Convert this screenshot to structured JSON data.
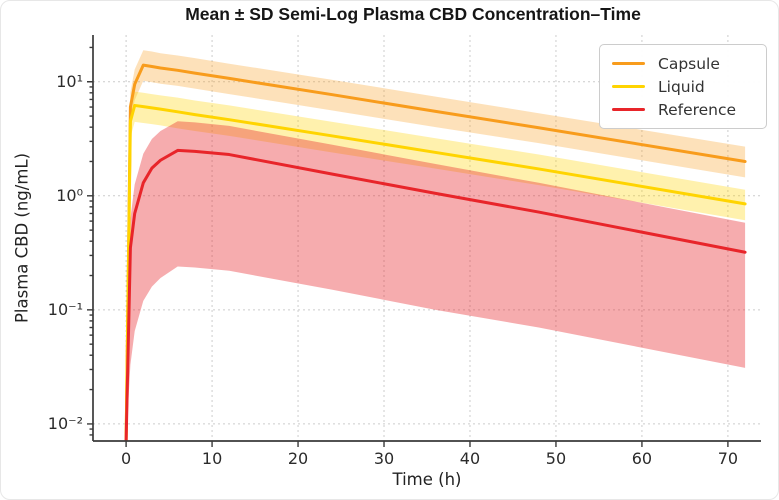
{
  "chart_data": {
    "type": "line",
    "title": "Mean ± SD Semi-Log Plasma CBD Concentration–Time",
    "xlabel": "Time (h)",
    "ylabel": "Plasma CBD (ng/mL)",
    "x_scale": "linear",
    "y_scale": "log",
    "xlim": [
      -3.85,
      73.85
    ],
    "ylim_log10": [
      -2.15,
      1.41
    ],
    "x_ticks": [
      0,
      10,
      20,
      30,
      40,
      50,
      60,
      70
    ],
    "y_ticks": [
      {
        "value": 10,
        "label": "10¹"
      },
      {
        "value": 1,
        "label": "10⁰"
      },
      {
        "value": 0.1,
        "label": "10⁻¹"
      },
      {
        "value": 0.01,
        "label": "10⁻²"
      }
    ],
    "grid": {
      "show": true,
      "style": "dashed",
      "color": "#cccccc"
    },
    "legend": {
      "position": "upper-right",
      "border_color": "#cccccc",
      "background": "#ffffff"
    },
    "x": [
      0,
      0.5,
      1,
      2,
      3,
      4,
      6,
      8,
      12,
      24,
      36,
      48,
      72
    ],
    "series": [
      {
        "name": "Capsule",
        "color": "#F89C1C",
        "band_opacity": 0.3,
        "mean": [
          0.007,
          6.0,
          9.5,
          14.0,
          13.6,
          13.2,
          12.6,
          11.9,
          10.7,
          7.7,
          5.5,
          3.95,
          2.0
        ],
        "upper": [
          0.007,
          8.1,
          12.8,
          18.9,
          18.4,
          17.8,
          17.0,
          16.1,
          14.4,
          10.4,
          7.4,
          5.3,
          2.7
        ],
        "lower": [
          0.007,
          4.4,
          6.9,
          10.2,
          9.9,
          9.6,
          9.2,
          8.7,
          7.8,
          5.6,
          4.0,
          2.9,
          1.45
        ]
      },
      {
        "name": "Liquid",
        "color": "#FFD400",
        "band_opacity": 0.32,
        "mean": [
          0.007,
          4.5,
          6.2,
          6.05,
          5.9,
          5.75,
          5.45,
          5.15,
          4.65,
          3.35,
          2.4,
          1.72,
          0.85
        ],
        "upper": [
          0.007,
          6.0,
          8.2,
          8.0,
          7.8,
          7.6,
          7.25,
          6.85,
          6.2,
          4.45,
          3.2,
          2.3,
          1.13
        ],
        "lower": [
          0.007,
          3.25,
          4.45,
          4.35,
          4.25,
          4.15,
          3.9,
          3.7,
          3.35,
          2.4,
          1.73,
          1.24,
          0.61
        ]
      },
      {
        "name": "Reference",
        "color": "#E8252A",
        "band_opacity": 0.38,
        "mean": [
          0.007,
          0.35,
          0.7,
          1.3,
          1.75,
          2.05,
          2.5,
          2.45,
          2.3,
          1.55,
          1.05,
          0.72,
          0.32
        ],
        "upper": [
          0.007,
          0.63,
          1.26,
          2.34,
          3.15,
          3.7,
          4.5,
          4.4,
          4.1,
          2.8,
          1.9,
          1.3,
          0.58
        ],
        "lower": [
          0.007,
          0.033,
          0.065,
          0.12,
          0.16,
          0.19,
          0.24,
          0.235,
          0.22,
          0.15,
          0.1,
          0.07,
          0.031
        ]
      }
    ]
  }
}
